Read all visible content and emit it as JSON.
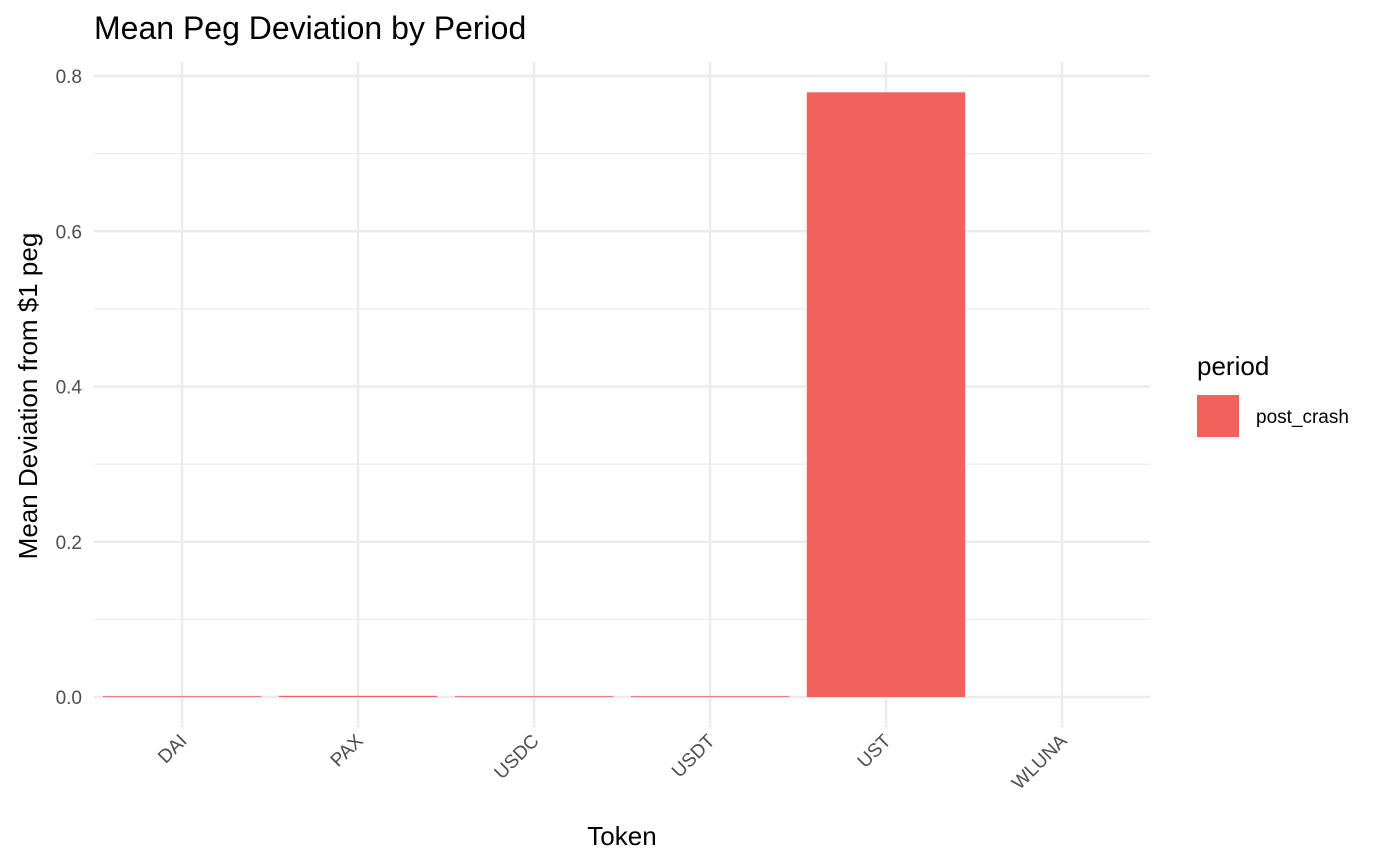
{
  "chart_data": {
    "type": "bar",
    "title": "Mean Peg Deviation by Period",
    "xlabel": "Token",
    "ylabel": "Mean Deviation from $1 peg",
    "categories": [
      "DAI",
      "PAX",
      "USDC",
      "USDT",
      "UST",
      "WLUNA"
    ],
    "series": [
      {
        "name": "post_crash",
        "color": "#F2615B",
        "values": [
          0.0006,
          0.0015,
          0.0002,
          0.0005,
          0.779,
          0.0
        ]
      }
    ],
    "ylim": [
      0,
      0.8
    ],
    "yticks": [
      0.0,
      0.2,
      0.4,
      0.6,
      0.8
    ],
    "ytick_labels": [
      "0.0",
      "0.2",
      "0.4",
      "0.6",
      "0.8"
    ],
    "grid": true,
    "legend": {
      "title": "period",
      "placement": "right",
      "entries": [
        "post_crash"
      ]
    }
  }
}
